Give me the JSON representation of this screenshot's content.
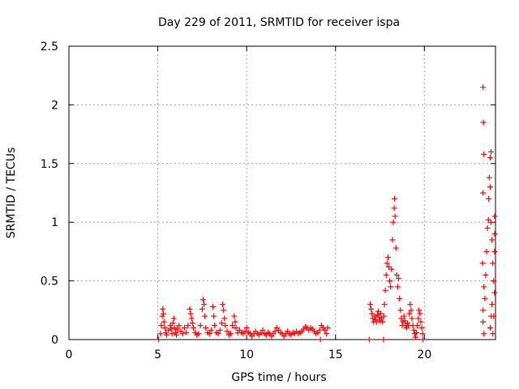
{
  "chart_data": {
    "type": "scatter",
    "title": "Day 229 of 2011, SRMTID for receiver ispa",
    "xlabel": "GPS time / hours",
    "ylabel": "SRMTID / TECUs",
    "xlim": [
      0,
      24
    ],
    "ylim": [
      0,
      2.5
    ],
    "xticks": [
      0,
      5,
      10,
      15,
      20
    ],
    "yticks": [
      0,
      0.5,
      1,
      1.5,
      2,
      2.5
    ],
    "xtick_labels": [
      "0",
      "5",
      "10",
      "15",
      "20"
    ],
    "ytick_labels": [
      "0",
      "0.5",
      "1",
      "1.5",
      "2",
      "2.5"
    ],
    "grid": true,
    "marker": "+",
    "color": "#ff0000",
    "series": [
      {
        "name": "SRMTID",
        "points": [
          [
            5.05,
            0.0
          ],
          [
            5.15,
            0.05
          ],
          [
            5.2,
            0.12
          ],
          [
            5.25,
            0.2
          ],
          [
            5.28,
            0.26
          ],
          [
            5.32,
            0.22
          ],
          [
            5.35,
            0.15
          ],
          [
            5.4,
            0.1
          ],
          [
            5.45,
            0.06
          ],
          [
            5.5,
            0.04
          ],
          [
            5.6,
            0.08
          ],
          [
            5.7,
            0.12
          ],
          [
            5.75,
            0.09
          ],
          [
            5.8,
            0.05
          ],
          [
            5.85,
            0.14
          ],
          [
            5.9,
            0.18
          ],
          [
            5.95,
            0.1
          ],
          [
            6.0,
            0.06
          ],
          [
            6.05,
            0.04
          ],
          [
            6.1,
            0.09
          ],
          [
            6.2,
            0.12
          ],
          [
            6.3,
            0.07
          ],
          [
            6.4,
            0.05
          ],
          [
            6.5,
            0.1
          ],
          [
            6.6,
            0.06
          ],
          [
            6.7,
            0.12
          ],
          [
            6.8,
            0.26
          ],
          [
            6.85,
            0.22
          ],
          [
            6.9,
            0.18
          ],
          [
            6.95,
            0.14
          ],
          [
            7.0,
            0.1
          ],
          [
            7.1,
            0.06
          ],
          [
            7.2,
            0.04
          ],
          [
            7.3,
            0.05
          ],
          [
            7.4,
            0.12
          ],
          [
            7.5,
            0.26
          ],
          [
            7.55,
            0.34
          ],
          [
            7.6,
            0.3
          ],
          [
            7.65,
            0.2
          ],
          [
            7.7,
            0.1
          ],
          [
            7.8,
            0.06
          ],
          [
            7.9,
            0.05
          ],
          [
            8.0,
            0.08
          ],
          [
            8.1,
            0.28
          ],
          [
            8.15,
            0.2
          ],
          [
            8.2,
            0.12
          ],
          [
            8.3,
            0.06
          ],
          [
            8.4,
            0.05
          ],
          [
            8.5,
            0.08
          ],
          [
            8.6,
            0.14
          ],
          [
            8.65,
            0.3
          ],
          [
            8.7,
            0.25
          ],
          [
            8.75,
            0.18
          ],
          [
            8.8,
            0.12
          ],
          [
            8.9,
            0.07
          ],
          [
            9.0,
            0.04
          ],
          [
            9.1,
            0.05
          ],
          [
            9.2,
            0.12
          ],
          [
            9.3,
            0.2
          ],
          [
            9.35,
            0.15
          ],
          [
            9.4,
            0.1
          ],
          [
            9.5,
            0.06
          ],
          [
            9.6,
            0.08
          ],
          [
            9.7,
            0.06
          ],
          [
            9.8,
            0.05
          ],
          [
            9.9,
            0.07
          ],
          [
            10.0,
            0.1
          ],
          [
            10.1,
            0.06
          ],
          [
            10.2,
            0.05
          ],
          [
            10.3,
            0.03
          ],
          [
            10.4,
            0.05
          ],
          [
            10.5,
            0.07
          ],
          [
            10.6,
            0.05
          ],
          [
            10.7,
            0.04
          ],
          [
            10.8,
            0.06
          ],
          [
            10.9,
            0.08
          ],
          [
            11.0,
            0.05
          ],
          [
            11.1,
            0.04
          ],
          [
            11.2,
            0.06
          ],
          [
            11.3,
            0.05
          ],
          [
            11.4,
            0.03
          ],
          [
            11.5,
            0.05
          ],
          [
            11.6,
            0.07
          ],
          [
            11.7,
            0.1
          ],
          [
            11.8,
            0.08
          ],
          [
            11.9,
            0.06
          ],
          [
            12.0,
            0.05
          ],
          [
            12.1,
            0.03
          ],
          [
            12.2,
            0.05
          ],
          [
            12.3,
            0.07
          ],
          [
            12.4,
            0.05
          ],
          [
            12.5,
            0.04
          ],
          [
            12.6,
            0.06
          ],
          [
            12.7,
            0.05
          ],
          [
            12.8,
            0.07
          ],
          [
            12.9,
            0.05
          ],
          [
            13.0,
            0.06
          ],
          [
            13.1,
            0.07
          ],
          [
            13.2,
            0.09
          ],
          [
            13.3,
            0.11
          ],
          [
            13.4,
            0.1
          ],
          [
            13.5,
            0.08
          ],
          [
            13.6,
            0.1
          ],
          [
            13.7,
            0.09
          ],
          [
            13.8,
            0.07
          ],
          [
            13.9,
            0.05
          ],
          [
            14.0,
            0.06
          ],
          [
            14.1,
            0.08
          ],
          [
            14.15,
            0.0
          ],
          [
            14.2,
            0.12
          ],
          [
            14.3,
            0.1
          ],
          [
            14.4,
            0.08
          ],
          [
            14.5,
            0.05
          ],
          [
            14.55,
            0.1
          ],
          [
            16.9,
            0.0
          ],
          [
            16.95,
            0.3
          ],
          [
            17.0,
            0.26
          ],
          [
            17.05,
            0.22
          ],
          [
            17.1,
            0.18
          ],
          [
            17.15,
            0.15
          ],
          [
            17.2,
            0.2
          ],
          [
            17.25,
            0.17
          ],
          [
            17.3,
            0.15
          ],
          [
            17.35,
            0.21
          ],
          [
            17.4,
            0.24
          ],
          [
            17.45,
            0.19
          ],
          [
            17.5,
            0.16
          ],
          [
            17.55,
            0.22
          ],
          [
            17.6,
            0.18
          ],
          [
            17.65,
            0.15
          ],
          [
            17.7,
            0.0
          ],
          [
            17.72,
            0.2
          ],
          [
            17.75,
            0.3
          ],
          [
            17.8,
            0.42
          ],
          [
            17.85,
            0.55
          ],
          [
            17.9,
            0.65
          ],
          [
            17.95,
            0.7
          ],
          [
            18.0,
            0.62
          ],
          [
            18.05,
            0.5
          ],
          [
            18.1,
            0.45
          ],
          [
            18.15,
            0.6
          ],
          [
            18.2,
            0.85
          ],
          [
            18.25,
            1.0
          ],
          [
            18.3,
            1.12
          ],
          [
            18.32,
            1.2
          ],
          [
            18.35,
            1.05
          ],
          [
            18.4,
            0.78
          ],
          [
            18.45,
            0.55
          ],
          [
            18.5,
            0.45
          ],
          [
            18.55,
            0.52
          ],
          [
            18.6,
            0.35
          ],
          [
            18.65,
            0.25
          ],
          [
            18.7,
            0.18
          ],
          [
            18.75,
            0.12
          ],
          [
            18.8,
            0.15
          ],
          [
            18.85,
            0.2
          ],
          [
            18.9,
            0.16
          ],
          [
            18.95,
            0.12
          ],
          [
            19.0,
            0.1
          ],
          [
            19.05,
            0.14
          ],
          [
            19.1,
            0.12
          ],
          [
            19.15,
            0.22
          ],
          [
            19.2,
            0.3
          ],
          [
            19.25,
            0.25
          ],
          [
            19.3,
            0.18
          ],
          [
            19.35,
            0.12
          ],
          [
            19.4,
            0.08
          ],
          [
            19.45,
            0.05
          ],
          [
            19.5,
            0.02
          ],
          [
            19.55,
            0.06
          ],
          [
            19.6,
            0.12
          ],
          [
            19.65,
            0.18
          ],
          [
            19.7,
            0.25
          ],
          [
            19.75,
            0.22
          ],
          [
            19.8,
            0.15
          ],
          [
            19.85,
            0.1
          ],
          [
            19.9,
            0.05
          ],
          [
            19.92,
            0.0
          ],
          [
            23.3,
            2.15
          ],
          [
            23.32,
            1.85
          ],
          [
            23.35,
            1.58
          ],
          [
            23.3,
            1.25
          ],
          [
            23.28,
            0.65
          ],
          [
            23.35,
            0.45
          ],
          [
            23.3,
            0.25
          ],
          [
            23.3,
            0.15
          ],
          [
            23.35,
            0.05
          ],
          [
            23.4,
            0.35
          ],
          [
            23.45,
            0.55
          ],
          [
            23.5,
            0.75
          ],
          [
            23.55,
            0.95
          ],
          [
            23.6,
            1.02
          ],
          [
            23.62,
            1.2
          ],
          [
            23.65,
            1.38
          ],
          [
            23.7,
            1.55
          ],
          [
            23.75,
            1.6
          ],
          [
            23.7,
            1.3
          ],
          [
            23.75,
            1.0
          ],
          [
            23.8,
            0.85
          ],
          [
            23.85,
            0.65
          ],
          [
            23.9,
            0.5
          ],
          [
            23.95,
            0.4
          ],
          [
            23.8,
            0.3
          ],
          [
            23.75,
            0.2
          ],
          [
            23.7,
            0.1
          ],
          [
            23.85,
            0.05
          ],
          [
            23.9,
            0.2
          ],
          [
            23.95,
            0.75
          ],
          [
            23.98,
            1.05
          ],
          [
            24.0,
            0.9
          ]
        ]
      }
    ]
  }
}
